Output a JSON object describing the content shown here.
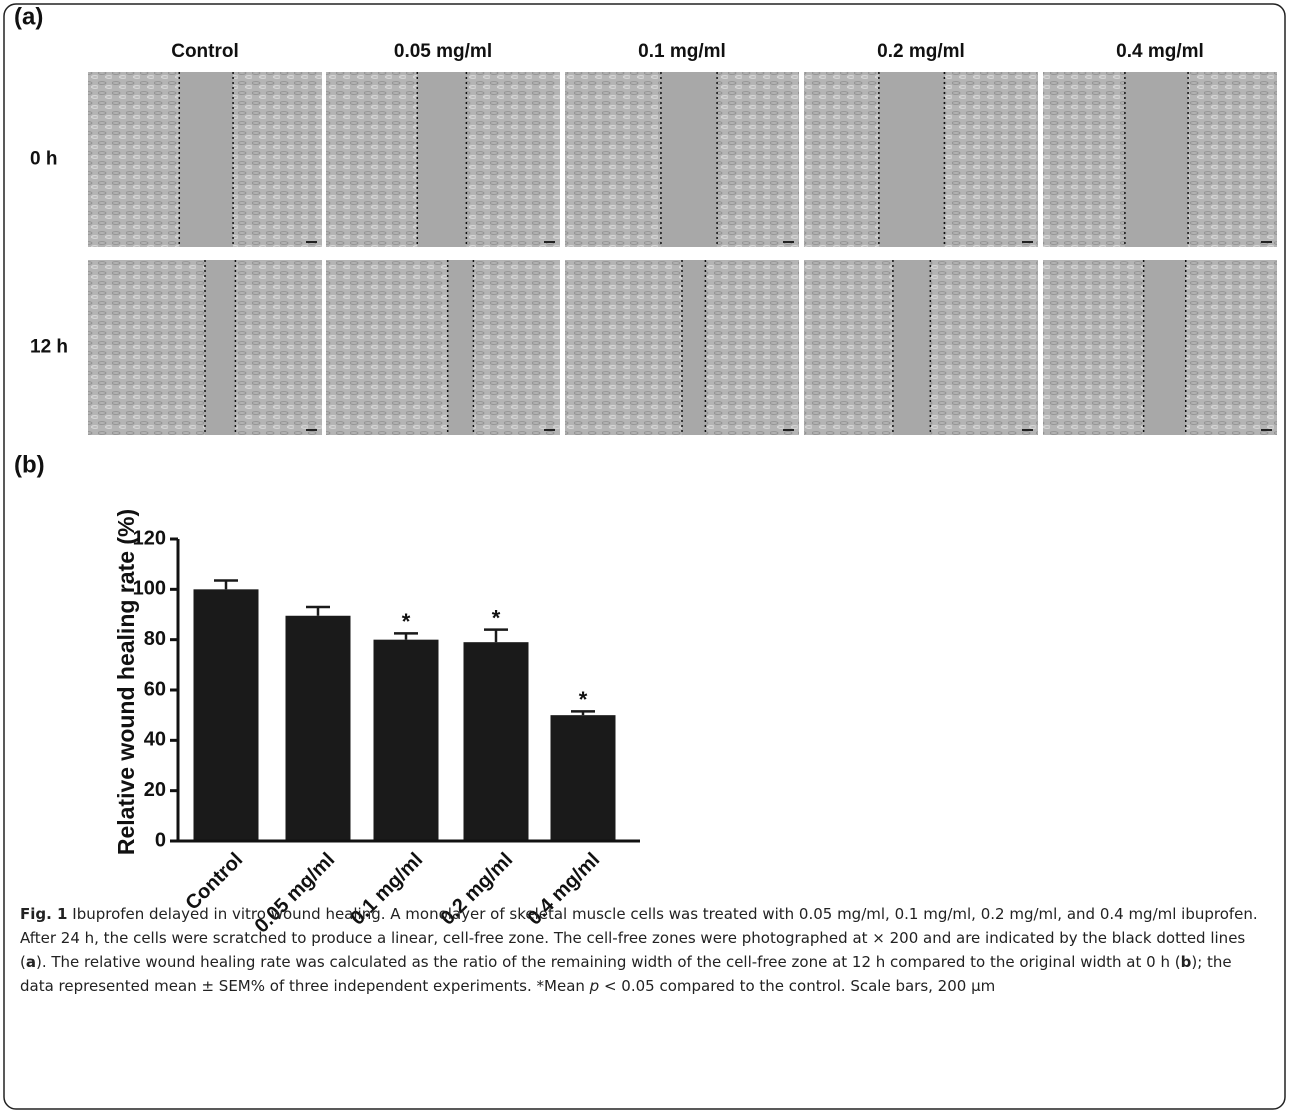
{
  "panel_a": {
    "label": "(a)",
    "columns": [
      "Control",
      "0.05 mg/ml",
      "0.1 mg/ml",
      "0.2 mg/ml",
      "0.4 mg/ml"
    ],
    "rows": [
      "0 h",
      "12 h"
    ]
  },
  "chart_data": {
    "type": "bar",
    "panel_label": "(b)",
    "ylabel": "Relative wound healing rate (%)",
    "categories": [
      "Control",
      "0.05 mg/ml",
      "0.1 mg/ml",
      "0.2 mg/ml",
      "0.4 mg/ml"
    ],
    "values": [
      100,
      89.5,
      80,
      79,
      50
    ],
    "errors": [
      3.5,
      3.5,
      2.5,
      5,
      1.5
    ],
    "annotations": [
      {
        "x": "0.1 mg/ml",
        "text": "*"
      },
      {
        "x": "0.2 mg/ml",
        "text": "*"
      },
      {
        "x": "0.4 mg/ml",
        "text": "*"
      }
    ],
    "color": "#1a1a1a",
    "ylim": [
      0,
      120
    ],
    "yticks": [
      0,
      20,
      40,
      60,
      80,
      100,
      120
    ]
  },
  "caption": {
    "label": "Fig. 1",
    "parts": [
      "Ibuprofen delayed in vitro wound healing. A monolayer of skeletal muscle cells was treated with 0.05 mg/ml, 0.1 mg/ml, 0.2 mg/ml, and 0.4 mg/ml ibuprofen. After 24 h, the cells were scratched to produce a linear, cell-free zone. The cell-free zones were photographed at × 200 and are indicated by the black dotted lines (",
      "a",
      "). The relative wound healing rate was calculated as the ratio of the remaining width of the cell-free zone at 12 h compared to the original width at 0 h (",
      "b",
      "); the data represented mean ± SEM% of three independent experiments. *Mean ",
      "p",
      " < 0.05 compared to the control. Scale bars, 200 μm"
    ]
  }
}
